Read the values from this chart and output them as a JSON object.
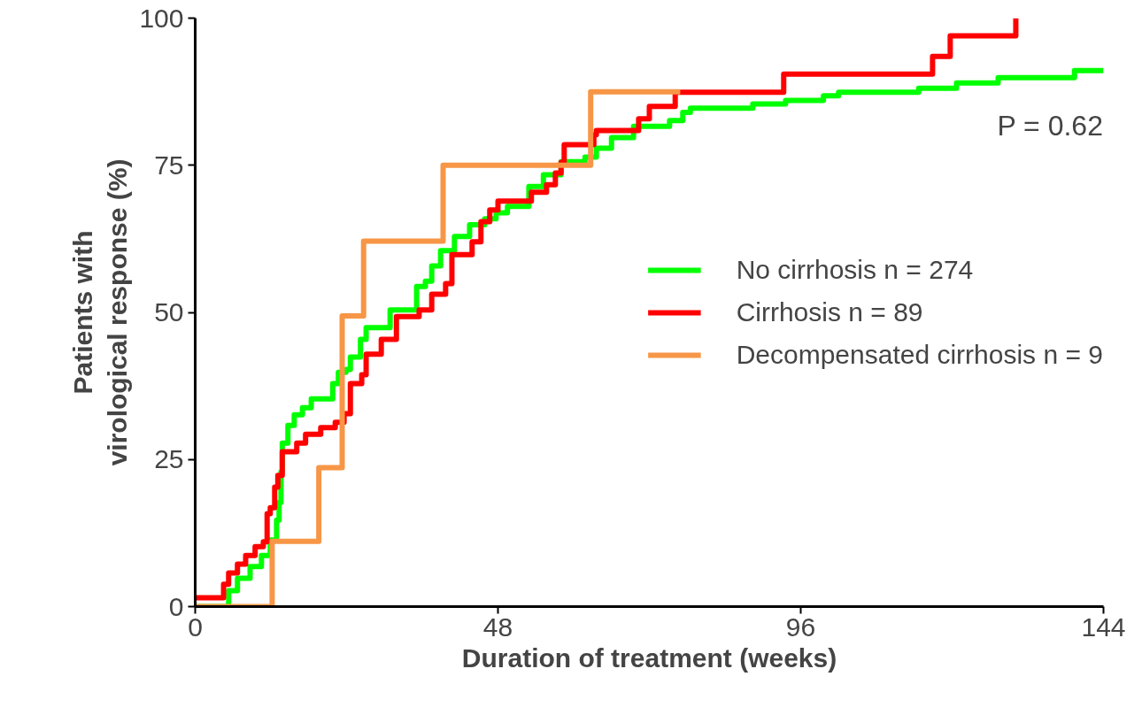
{
  "chart_data": {
    "type": "step",
    "xlabel": "Duration of treatment (weeks)",
    "ylabel": "Patients with\nvirological response (%)",
    "xlim": [
      0,
      144
    ],
    "xticks": [
      0,
      48,
      96,
      144
    ],
    "ylim": [
      0,
      100
    ],
    "yticks": [
      0,
      25,
      50,
      75,
      100
    ],
    "grid": false,
    "legend": "right",
    "line_style": "solid",
    "marker": "none",
    "annotations": [
      "P = 0.62"
    ],
    "series": [
      {
        "name": "No cirrhosis n = 274",
        "color": "#00ff00",
        "x": [
          0,
          5.3,
          6.7,
          8.7,
          10.5,
          11.9,
          12.9,
          13.3,
          13.6,
          13.8,
          14.7,
          15.7,
          17.0,
          18.4,
          21.8,
          22.7,
          23.9,
          24.6,
          26.2,
          27.1,
          30.9,
          35.1,
          36.5,
          37.5,
          38.9,
          41.1,
          43.5,
          45.9,
          47.7,
          49.5,
          52.9,
          55.2,
          58,
          61.8,
          63.6,
          66,
          69.5,
          75.2,
          77.3,
          78.5,
          88.4,
          93.6,
          99.6,
          102,
          114.7,
          120.7,
          127.3,
          139.4,
          144
        ],
        "values": [
          0,
          2.7,
          4.8,
          6.8,
          8.7,
          11.3,
          14.7,
          17.7,
          22.9,
          27.8,
          30.8,
          32.6,
          33.8,
          35.3,
          37.9,
          39.8,
          40.3,
          42.4,
          45.4,
          47.4,
          50.4,
          54.4,
          55.3,
          57.9,
          60.5,
          62.9,
          64.9,
          65.9,
          66.9,
          68,
          71.4,
          73.4,
          75.6,
          76.4,
          77.9,
          79.7,
          81.6,
          82.6,
          84,
          84.7,
          85.4,
          86,
          86.8,
          87.4,
          88.1,
          89,
          89.9,
          91.1,
          91.1
        ]
      },
      {
        "name": "Cirrhosis n = 89",
        "color": "#ff0000",
        "x": [
          0,
          4.5,
          5.3,
          6.7,
          8.0,
          9.5,
          10.8,
          11.4,
          11.9,
          12.6,
          13.1,
          13.8,
          16.1,
          17.5,
          19.9,
          22.2,
          23.6,
          24.6,
          26.4,
          27.1,
          29.5,
          31.9,
          35.5,
          37.5,
          39.7,
          40.7,
          43.9,
          45.3,
          46.7,
          48,
          53.3,
          55.7,
          57.1,
          58,
          58.5,
          63.2,
          63.6,
          70.3,
          72,
          76.1,
          93.3,
          116.9,
          119.7,
          130.1
        ],
        "values": [
          1.5,
          3.8,
          5.7,
          7.2,
          8.7,
          10.2,
          11,
          15.8,
          16.8,
          20.3,
          22.3,
          26.3,
          27.8,
          29.3,
          30.4,
          31.3,
          32.8,
          37.9,
          39.4,
          42.9,
          45.4,
          49.3,
          50.4,
          53.1,
          54.9,
          59.8,
          62,
          65.4,
          67.4,
          68.9,
          70.4,
          71.7,
          73.7,
          75.5,
          78.5,
          80.2,
          80.9,
          82.9,
          85,
          87.4,
          90.5,
          93.5,
          97,
          100
        ]
      },
      {
        "name": "Decompensated cirrhosis n = 9",
        "color": "#f79646",
        "x": [
          0,
          12.2,
          19.6,
          23.3,
          26.7,
          39.3,
          62.7,
          76.9
        ],
        "values": [
          0,
          11.1,
          23.6,
          49.4,
          62.1,
          75,
          87.5,
          87.5
        ]
      }
    ]
  }
}
